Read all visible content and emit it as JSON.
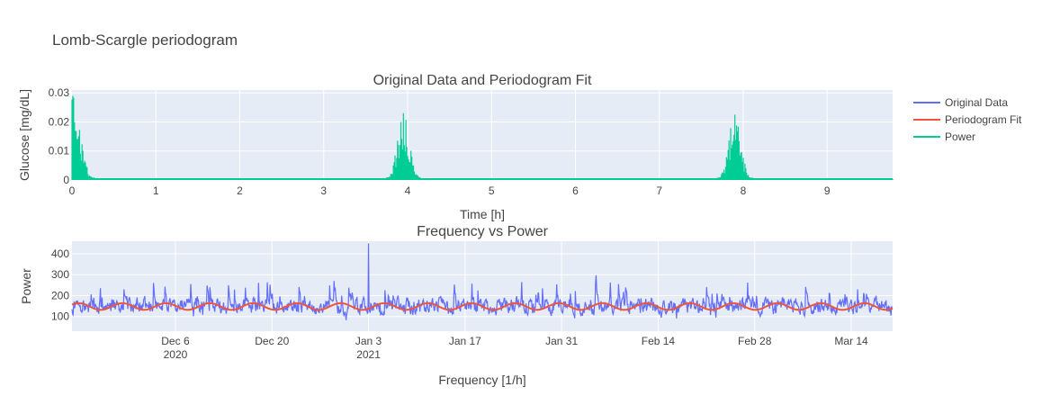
{
  "chart_data": {
    "title": "Lomb-Scargle periodogram",
    "legend": {
      "placement": "right",
      "entries": [
        {
          "name": "Original Data",
          "color": "#636efa"
        },
        {
          "name": "Periodogram Fit",
          "color": "#ef553b"
        },
        {
          "name": "Power",
          "color": "#00cc96"
        }
      ]
    },
    "colors": {
      "plot_bg": "#e5ecf6",
      "grid": "#ffffff",
      "text": "#444444"
    },
    "subplots": [
      {
        "type": "line",
        "title": "Original Data and Periodogram Fit",
        "xlabel": "Time [h]",
        "ylabel": "Glucose [mg/dL]",
        "xlim": [
          0,
          9.78
        ],
        "ylim": [
          0,
          0.031
        ],
        "xticks": [
          0,
          1,
          2,
          3,
          4,
          5,
          6,
          7,
          8,
          9
        ],
        "xtick_labels": [
          "0",
          "1",
          "2",
          "3",
          "4",
          "5",
          "6",
          "7",
          "8",
          "9"
        ],
        "yticks": [
          0,
          0.01,
          0.02,
          0.03
        ],
        "ytick_labels": [
          "0",
          "0.01",
          "0.02",
          "0.03"
        ],
        "grid": true,
        "series": [
          {
            "name": "Power",
            "color": "#00cc96",
            "sampling_step": 0.01,
            "peaks": [
              {
                "x": 0.0,
                "value": 0.029
              },
              {
                "x": 3.95,
                "value": 0.023
              },
              {
                "x": 7.9,
                "value": 0.0225
              }
            ]
          }
        ]
      },
      {
        "type": "line",
        "title": "Frequency vs Power",
        "xlabel": "Frequency [1/h]",
        "ylabel": "Power",
        "xlim": [
          "2020-11-21",
          "2021-03-20"
        ],
        "ylim": [
          30,
          460
        ],
        "xticks": [
          "2020-12-06",
          "2020-12-20",
          "2021-01-03",
          "2021-01-17",
          "2021-01-31",
          "2021-02-14",
          "2021-02-28",
          "2021-03-14"
        ],
        "xtick_labels": [
          [
            "Dec 6",
            "2020"
          ],
          [
            "Dec 20"
          ],
          [
            "Jan 3",
            "2021"
          ],
          [
            "Jan 17"
          ],
          [
            "Jan 31"
          ],
          [
            "Feb 14"
          ],
          [
            "Feb 28"
          ],
          [
            "Mar 14"
          ]
        ],
        "yticks": [
          100,
          200,
          300,
          400
        ],
        "ytick_labels": [
          "100",
          "200",
          "300",
          "400"
        ],
        "grid": true,
        "series": [
          {
            "name": "Original Data",
            "color": "#636efa",
            "approx_mean": 150,
            "approx_range": [
              40,
              450
            ],
            "sampling": "5-minute readings"
          },
          {
            "name": "Periodogram Fit",
            "color": "#ef553b",
            "period_days": 6.33,
            "mean": 148,
            "amplitude": 16
          }
        ]
      }
    ]
  }
}
